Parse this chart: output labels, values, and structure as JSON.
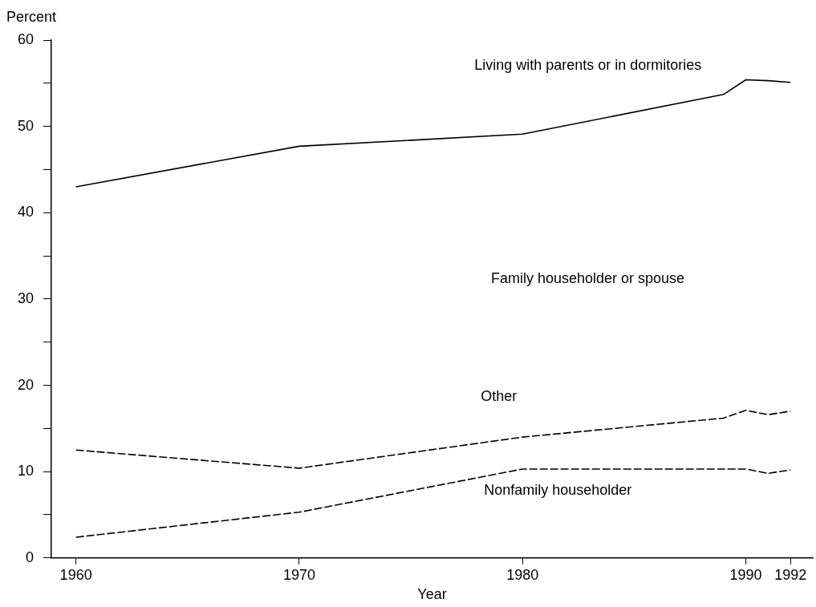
{
  "chart_data": {
    "type": "line",
    "ylabel": "Percent",
    "xlabel": "Year",
    "x": [
      1960,
      1970,
      1980,
      1989,
      1990,
      1991,
      1992
    ],
    "series": [
      {
        "name": "Living with parents or in dormitories",
        "color": "#000000",
        "line_style": "solid",
        "values": [
          43.0,
          47.7,
          49.1,
          53.7,
          55.4,
          55.3,
          55.1
        ]
      },
      {
        "name": "Other",
        "color": "#000000",
        "line_style": "dashed",
        "values": [
          12.5,
          10.4,
          14.0,
          16.2,
          17.1,
          16.6,
          17.0
        ]
      },
      {
        "name": "Nonfamily householder",
        "color": "#000000",
        "line_style": "dashed",
        "values": [
          2.4,
          5.3,
          10.3,
          10.3,
          10.3,
          9.8,
          10.2
        ]
      }
    ],
    "annotations": [
      "Family householder or spouse"
    ],
    "xlim": [
      1958.9,
      1993
    ],
    "xticks": [
      1960,
      1970,
      1980,
      1990,
      1992
    ],
    "ylim": [
      0,
      60
    ],
    "yticks": [
      0,
      {
        "value": 5,
        "label": null
      },
      10,
      {
        "value": 15,
        "label": null
      },
      20,
      {
        "value": 25,
        "label": null
      },
      30,
      {
        "value": 35,
        "label": null
      },
      40,
      {
        "value": 45,
        "label": null
      },
      50,
      {
        "value": 55,
        "label": null
      },
      60
    ],
    "grid": false,
    "legend": false,
    "marker": "none"
  }
}
